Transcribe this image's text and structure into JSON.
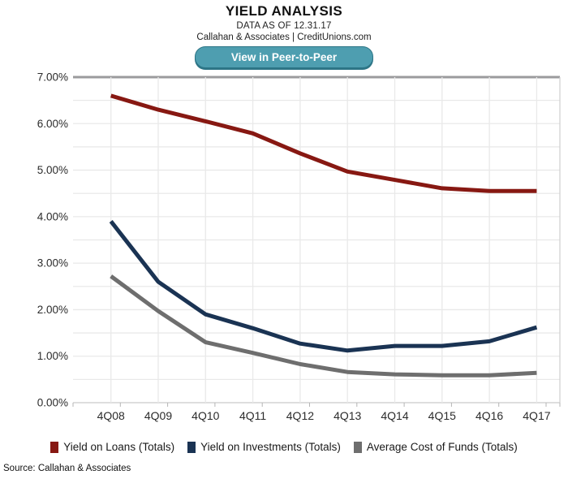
{
  "header": {
    "title": "YIELD ANALYSIS",
    "subtitle": "DATA AS OF 12.31.17",
    "byline": "Callahan & Associates | CreditUnions.com"
  },
  "button": {
    "label": "View in Peer-to-Peer",
    "bg": "#4e9eb0",
    "border": "#2d7586"
  },
  "source": "Source: Callahan & Associates",
  "chart_data": {
    "type": "line",
    "categories": [
      "4Q08",
      "4Q09",
      "4Q10",
      "4Q11",
      "4Q12",
      "4Q13",
      "4Q14",
      "4Q15",
      "4Q16",
      "4Q17"
    ],
    "series": [
      {
        "name": "Yield on Loans (Totals)",
        "color": "#871812",
        "values": [
          6.6,
          6.3,
          6.05,
          5.79,
          5.36,
          4.97,
          4.79,
          4.61,
          4.55,
          4.55
        ]
      },
      {
        "name": "Yield on Investments (Totals)",
        "color": "#1a3353",
        "values": [
          3.9,
          2.6,
          1.9,
          1.6,
          1.27,
          1.12,
          1.22,
          1.22,
          1.32,
          1.62
        ]
      },
      {
        "name": "Average Cost of Funds (Totals)",
        "color": "#6e6e6e",
        "values": [
          2.72,
          1.97,
          1.3,
          1.07,
          0.83,
          0.66,
          0.61,
          0.59,
          0.59,
          0.64
        ]
      }
    ],
    "title": "YIELD ANALYSIS",
    "xlabel": "",
    "ylabel": "",
    "ylim": [
      0,
      7
    ],
    "ytick_step": 1,
    "minor_grid_step": 0.5,
    "ytick_format": "0.00%",
    "grid": true,
    "legend_position": "bottom",
    "axis_label_color": "#2b2b2b",
    "grid_color": "#e9e9e9",
    "top_border_color": "#9b9b9d",
    "axis_line_color": "#c9c9c9"
  }
}
